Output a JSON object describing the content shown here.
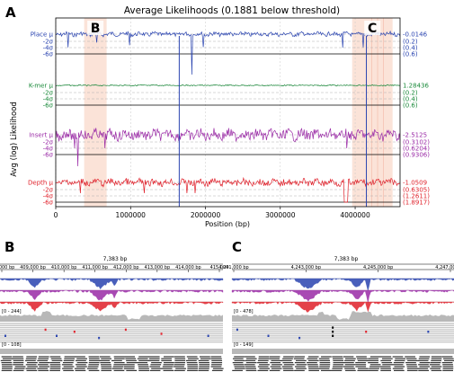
{
  "panel_labels": {
    "a": "A",
    "b": "B",
    "c": "C"
  },
  "chart_data": [
    {
      "type": "line",
      "title": "Average Likelihoods (0.1881 below threshold)",
      "xlabel": "Position (bp)",
      "ylabel": "Avg (log) Likelihood",
      "xlim": [
        0,
        4600000
      ],
      "x_ticks": [
        0,
        1000000,
        2000000,
        3000000,
        4000000
      ],
      "x_tick_labels": [
        "0",
        "1000000",
        "2000000",
        "3000000",
        "4000000"
      ],
      "grid": true,
      "region_labels": [
        "B",
        "C"
      ],
      "highlight_regions": [
        {
          "label": "B",
          "start": 380000,
          "end": 680000
        },
        {
          "label": "C",
          "start": 3960000,
          "end": 4500000
        }
      ],
      "vertical_markers": [
        1650000,
        4150000
      ],
      "series": [
        {
          "name": "Place",
          "color": "#2a44b0",
          "left_labels": [
            "Place μ",
            "-2σ",
            "-4σ",
            "-6σ"
          ],
          "right_labels": [
            "-0.0146",
            "(0.2)",
            "(0.4)",
            "(0.6)"
          ]
        },
        {
          "name": "K-mer",
          "color": "#1a8a3a",
          "left_labels": [
            "K-mer μ",
            "-2σ",
            "-4σ",
            "-6σ"
          ],
          "right_labels": [
            "1.28436",
            "(0.2)",
            "(0.4)",
            "(0.6)"
          ]
        },
        {
          "name": "Insert",
          "color": "#9a2aa6",
          "left_labels": [
            "Insert μ",
            "-2σ",
            "-4σ",
            "-6σ"
          ],
          "right_labels": [
            "-2.5125",
            "(0.3102)",
            "(0.6204)",
            "(0.9306)"
          ]
        },
        {
          "name": "Depth",
          "color": "#e0202a",
          "left_labels": [
            "Depth μ",
            "-2σ",
            "-4σ",
            "-6σ"
          ],
          "right_labels": [
            "-1.0509",
            "(0.6305)",
            "(1.2611)",
            "(1.8917)"
          ]
        }
      ]
    },
    {
      "type": "line",
      "title": "7,383 bp",
      "x_tick_labels": [
        "408,000 bp",
        "409,000 bp",
        "410,000 bp",
        "411,000 bp",
        "412,000 bp",
        "413,000 bp",
        "414,000 bp",
        "415,000"
      ],
      "track_labels": [
        "[0 - 244]",
        "[0 - 108]"
      ]
    },
    {
      "type": "line",
      "title": "7,383 bp",
      "x_tick_labels": [
        "4,241,000 bp",
        "4,243,000 bp",
        "4,245,000 bp",
        "4,247,000 bp"
      ],
      "track_labels": [
        "[0 - 478]",
        "[0 - 149]"
      ]
    }
  ]
}
